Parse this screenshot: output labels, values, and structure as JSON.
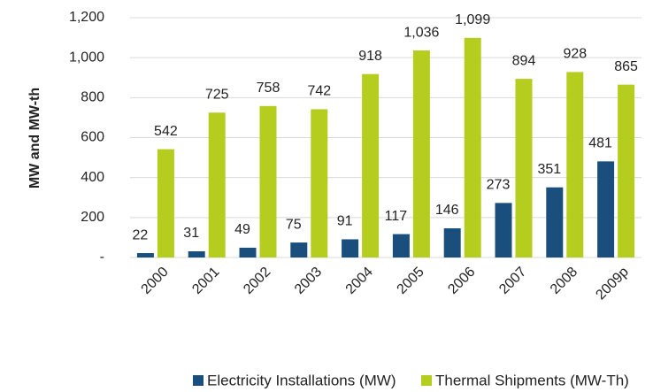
{
  "chart_data": {
    "type": "bar",
    "y_label": "MW and MW-th",
    "categories": [
      "2000",
      "2001",
      "2002",
      "2003",
      "2004",
      "2005",
      "2006",
      "2007",
      "2008",
      "2009p"
    ],
    "series": [
      {
        "name": "Electricity Installations (MW)",
        "color": "#1a4f7d",
        "values": [
          22,
          31,
          49,
          75,
          91,
          117,
          146,
          273,
          351,
          481
        ]
      },
      {
        "name": "Thermal Shipments (MW-Th)",
        "color": "#b5cd1f",
        "values": [
          542,
          725,
          758,
          742,
          918,
          1036,
          1099,
          894,
          928,
          865
        ],
        "value_labels": [
          "542",
          "725",
          "758",
          "742",
          "918",
          "1,036",
          "1,099",
          "894",
          "928",
          "865"
        ]
      }
    ],
    "ylim": [
      0,
      1200
    ],
    "yticks": [
      {
        "value": 0,
        "label": "-"
      },
      200,
      400,
      600,
      800,
      {
        "value": 1000,
        "label": "1,000"
      },
      {
        "value": 1200,
        "label": "1,200"
      }
    ],
    "grid": true,
    "legend": "bottom"
  }
}
